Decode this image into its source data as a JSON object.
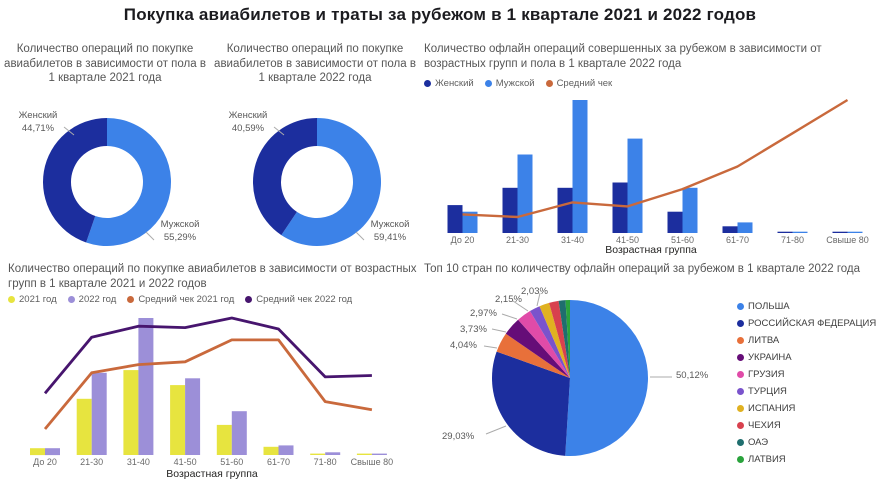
{
  "page": {
    "title": "Покупка авиабилетов и траты за рубежом в 1 квартале 2021 и 2022 годов"
  },
  "chart_data": [
    {
      "id": "gender_share_2021",
      "type": "pie",
      "subtype": "donut",
      "title": "Количество операций по покупке авиабилетов в зависимости от пола в 1 квартале 2021 года",
      "labels": [
        "Женский",
        "Мужской"
      ],
      "values": [
        44.71,
        55.29
      ],
      "display_values": [
        "44,71%",
        "55,29%"
      ],
      "colors": [
        "#1c2e9e",
        "#3c82e8"
      ],
      "legend_position": "none"
    },
    {
      "id": "gender_share_2022",
      "type": "pie",
      "subtype": "donut",
      "title": "Количество операций по покупке авиабилетов в зависимости от пола в 1 квартале 2022 года",
      "labels": [
        "Женский",
        "Мужской"
      ],
      "values": [
        40.59,
        59.41
      ],
      "display_values": [
        "40,59%",
        "59,41%"
      ],
      "colors": [
        "#1c2e9e",
        "#3c82e8"
      ],
      "legend_position": "none"
    },
    {
      "id": "offline_ops_by_age_and_gender_2022",
      "type": "bar",
      "title": "Количество офлайн операций совершенных за рубежом в зависимости от возрастных групп и пола в 1 квартале 2022 года",
      "xlabel": "Возрастная группа",
      "ylabel": "",
      "categories": [
        "До 20",
        "21-30",
        "31-40",
        "41-50",
        "51-60",
        "61-70",
        "71-80",
        "Свыше 80"
      ],
      "series": [
        {
          "name": "Женский",
          "type": "bar",
          "color": "#1c2e9e",
          "values": [
            21,
            34,
            34,
            38,
            16,
            5,
            1,
            1
          ]
        },
        {
          "name": "Мужской",
          "type": "bar",
          "color": "#3c82e8",
          "values": [
            16,
            59,
            100,
            71,
            34,
            8,
            1,
            1
          ]
        },
        {
          "name": "Средний чек",
          "type": "line",
          "color": "#c9693c",
          "values": [
            14,
            12,
            23,
            20,
            33,
            50,
            75,
            100
          ]
        }
      ],
      "ylim": [
        0,
        100
      ],
      "note": "relative scale 0-100, no value axis shown in visual",
      "legend_position": "top",
      "grid": false
    },
    {
      "id": "ticket_ops_by_age_2021_2022",
      "type": "bar",
      "title": "Количество операций по покупке авиабилетов в зависимости от возрастных групп в 1 квартале 2021 и 2022 годов",
      "xlabel": "Возрастная группа",
      "ylabel": "",
      "categories": [
        "До 20",
        "21-30",
        "31-40",
        "41-50",
        "51-60",
        "61-70",
        "71-80",
        "Свыше 80"
      ],
      "series": [
        {
          "name": "2021 год",
          "type": "bar",
          "color": "#e7e43f",
          "values": [
            5,
            41,
            62,
            51,
            22,
            6,
            1,
            1
          ]
        },
        {
          "name": "2022 год",
          "type": "bar",
          "color": "#9c8fd8",
          "values": [
            5,
            60,
            100,
            56,
            32,
            7,
            2,
            1
          ]
        },
        {
          "name": "Средний чек 2021 год",
          "type": "line",
          "color": "#c9693c",
          "values": [
            19,
            60,
            66,
            68,
            84,
            84,
            39,
            33
          ]
        },
        {
          "name": "Средний чек 2022 год",
          "type": "line",
          "color": "#47156e",
          "values": [
            45,
            86,
            94,
            93,
            100,
            92,
            57,
            58
          ]
        }
      ],
      "ylim": [
        0,
        100
      ],
      "note": "relative scale 0-100, no value axis shown in visual",
      "legend_position": "top",
      "grid": false
    },
    {
      "id": "top10_countries_offline_ops_2022",
      "type": "pie",
      "title": "Топ 10 стран по количеству офлайн операций за рубежом в 1 квартале 2022 года",
      "labels": [
        "ПОЛЬША",
        "РОССИЙСКАЯ ФЕДЕРАЦИЯ",
        "ЛИТВА",
        "УКРАИНА",
        "ГРУЗИЯ",
        "ТУРЦИЯ",
        "ИСПАНИЯ",
        "ЧЕХИЯ",
        "ОАЭ",
        "ЛАТВИЯ"
      ],
      "values": [
        50.12,
        29.03,
        4.04,
        3.73,
        2.97,
        2.15,
        2.03,
        1.95,
        1.4,
        0.9
      ],
      "display_values": [
        "50,12%",
        "29,03%",
        "4,04%",
        "3,73%",
        "2,97%",
        "2,15%",
        "2,03%",
        "",
        "",
        ""
      ],
      "colors": [
        "#3c82e8",
        "#1c2e9e",
        "#e8703a",
        "#660d78",
        "#e04ba8",
        "#7a53cc",
        "#e0b121",
        "#d8414e",
        "#1f6e6e",
        "#2aa33c"
      ],
      "note": "last three slices unlabeled in visual, values estimated",
      "legend_position": "right"
    }
  ]
}
